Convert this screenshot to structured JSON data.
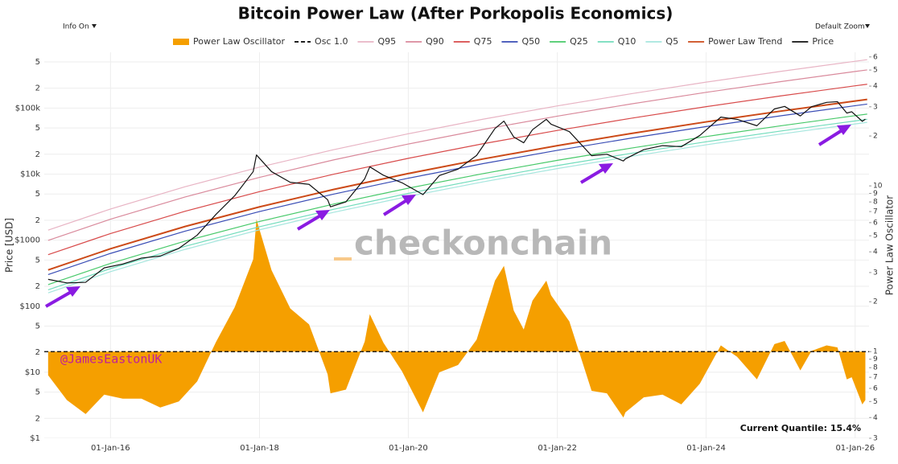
{
  "chart_data": {
    "type": "line",
    "title": "Bitcoin Power Law (After Porkopolis Economics)",
    "controls": {
      "info": "Info On",
      "zoom": "Default Zoom"
    },
    "ylabel": "Price [USD]",
    "y2label": "Power Law Oscillator",
    "log_scale": true,
    "grid": true,
    "legend": "top",
    "annotations": {
      "quantile": "Current Quantile: 15.4%",
      "watermark": "checkonchain",
      "handle": "@JamesEastonUK"
    },
    "xlim": [
      "2015-02-10",
      "2026-03-10"
    ],
    "xticks": [
      {
        "value": "2016-01-01",
        "label": "01-Jan-16"
      },
      {
        "value": "2018-01-01",
        "label": "01-Jan-18"
      },
      {
        "value": "2020-01-01",
        "label": "01-Jan-20"
      },
      {
        "value": "2022-01-01",
        "label": "01-Jan-22"
      },
      {
        "value": "2024-01-01",
        "label": "01-Jan-24"
      },
      {
        "value": "2026-01-01",
        "label": "01-Jan-26"
      }
    ],
    "ylim": [
      1,
      700000
    ],
    "yticks": [
      {
        "value": 1,
        "label": "$1"
      },
      2,
      5,
      {
        "value": 10,
        "label": "$10"
      },
      {
        "value": 20,
        "label": "2"
      },
      {
        "value": 50,
        "label": "5"
      },
      {
        "value": 100,
        "label": "$100"
      },
      {
        "value": 200,
        "label": "2"
      },
      {
        "value": 500,
        "label": "5"
      },
      {
        "value": 1000,
        "label": "$1000"
      },
      {
        "value": 2000,
        "label": "2"
      },
      {
        "value": 5000,
        "label": "5"
      },
      {
        "value": 10000,
        "label": "$10k"
      },
      {
        "value": 20000,
        "label": "2"
      },
      {
        "value": 50000,
        "label": "5"
      },
      {
        "value": 100000,
        "label": "$100k"
      },
      {
        "value": 200000,
        "label": "2"
      },
      {
        "value": 500000,
        "label": "5"
      }
    ],
    "y2lim": [
      0.3,
      64
    ],
    "y2ticks": [
      {
        "value": 0.3,
        "label": "3"
      },
      {
        "value": 0.4,
        "label": "4"
      },
      {
        "value": 0.5,
        "label": "5"
      },
      {
        "value": 0.6,
        "label": "6"
      },
      {
        "value": 0.7,
        "label": "7"
      },
      {
        "value": 0.8,
        "label": "8"
      },
      {
        "value": 0.9,
        "label": "9"
      },
      1,
      2,
      3,
      4,
      5,
      6,
      7,
      8,
      9,
      10,
      {
        "value": 20,
        "label": "2"
      },
      {
        "value": 30,
        "label": "3"
      },
      {
        "value": 40,
        "label": "4"
      },
      {
        "value": 50,
        "label": "5"
      },
      {
        "value": 60,
        "label": "6"
      }
    ],
    "x": [
      "2015-03-01",
      "2015-06-01",
      "2015-09-01",
      "2015-12-01",
      "2016-03-01",
      "2016-06-01",
      "2016-09-01",
      "2016-12-01",
      "2017-03-01",
      "2017-06-01",
      "2017-09-01",
      "2017-12-01",
      "2017-12-17",
      "2018-03-01",
      "2018-06-01",
      "2018-09-01",
      "2018-12-01",
      "2018-12-15",
      "2019-03-01",
      "2019-06-01",
      "2019-06-26",
      "2019-09-01",
      "2019-12-01",
      "2020-03-13",
      "2020-06-01",
      "2020-09-01",
      "2020-12-01",
      "2021-03-01",
      "2021-04-14",
      "2021-06-01",
      "2021-07-20",
      "2021-09-01",
      "2021-11-08",
      "2021-12-01",
      "2022-03-01",
      "2022-06-18",
      "2022-09-01",
      "2022-11-21",
      "2022-12-01",
      "2023-03-01",
      "2023-06-01",
      "2023-09-01",
      "2023-12-01",
      "2024-03-13",
      "2024-06-01",
      "2024-09-06",
      "2024-12-01",
      "2025-01-20",
      "2025-04-07",
      "2025-06-01",
      "2025-08-14",
      "2025-10-06",
      "2025-11-21",
      "2025-12-15",
      "2026-02-05",
      "2026-02-20"
    ],
    "series": [
      {
        "name": "Power Law Oscillator",
        "color": "#f59f00",
        "style": "area",
        "axis": "y2",
        "values": [
          0.72,
          0.51,
          0.42,
          0.55,
          0.52,
          0.52,
          0.46,
          0.5,
          0.66,
          1.14,
          1.85,
          3.61,
          6.28,
          3.1,
          1.82,
          1.46,
          0.73,
          0.56,
          0.59,
          1.15,
          1.68,
          1.13,
          0.76,
          0.43,
          0.75,
          0.83,
          1.18,
          2.68,
          3.29,
          1.77,
          1.36,
          2.03,
          2.68,
          2.19,
          1.52,
          0.58,
          0.56,
          0.4,
          0.43,
          0.53,
          0.55,
          0.48,
          0.64,
          1.09,
          0.93,
          0.68,
          1.11,
          1.16,
          0.77,
          1.01,
          1.09,
          1.06,
          0.68,
          0.7,
          0.48,
          0.51
        ]
      },
      {
        "name": "Osc 1.0",
        "color": "#000000",
        "style": "dash",
        "axis": "y2",
        "value": 1
      },
      {
        "name": "Q95",
        "color": "#e8b4c4",
        "x": [
          "2015-03-01",
          "2016-01-01",
          "2017-01-01",
          "2018-01-01",
          "2019-01-01",
          "2020-01-01",
          "2021-01-01",
          "2022-01-01",
          "2023-01-01",
          "2024-01-01",
          "2025-01-01",
          "2026-01-01",
          "2026-03-01"
        ],
        "values": [
          1416,
          2964,
          6444,
          12768,
          23500,
          40840,
          67800,
          107880,
          165600,
          247200,
          359600,
          511600,
          540800
        ]
      },
      {
        "name": "Q90",
        "color": "#d98a9c",
        "x": [
          "2015-03-01",
          "2016-01-01",
          "2017-01-01",
          "2018-01-01",
          "2019-01-01",
          "2020-01-01",
          "2021-01-01",
          "2022-01-01",
          "2023-01-01",
          "2024-01-01",
          "2025-01-01",
          "2026-01-01",
          "2026-03-01"
        ],
        "values": [
          991,
          2075,
          4511,
          8938,
          16450,
          28588,
          47460,
          75516,
          115920,
          173040,
          251720,
          358120,
          378560
        ]
      },
      {
        "name": "Q75",
        "color": "#d84a4a",
        "x": [
          "2015-03-01",
          "2016-01-01",
          "2017-01-01",
          "2018-01-01",
          "2019-01-01",
          "2020-01-01",
          "2021-01-01",
          "2022-01-01",
          "2023-01-01",
          "2024-01-01",
          "2025-01-01",
          "2026-01-01",
          "2026-03-01"
        ],
        "values": [
          602,
          1260,
          2739,
          5426,
          9988,
          17357,
          28815,
          45849,
          70380,
          105060,
          152830,
          217430,
          229840
        ]
      },
      {
        "name": "Q50",
        "color": "#3a4db5",
        "x": [
          "2015-03-01",
          "2016-01-01",
          "2017-01-01",
          "2018-01-01",
          "2019-01-01",
          "2020-01-01",
          "2021-01-01",
          "2022-01-01",
          "2023-01-01",
          "2024-01-01",
          "2025-01-01",
          "2026-01-01",
          "2026-03-01"
        ],
        "values": [
          301,
          630,
          1369,
          2713,
          4994,
          8679,
          14408,
          22925,
          35190,
          52530,
          76415,
          108715,
          114920
        ]
      },
      {
        "name": "Q25",
        "color": "#48c96a",
        "x": [
          "2015-03-01",
          "2016-01-01",
          "2017-01-01",
          "2018-01-01",
          "2019-01-01",
          "2020-01-01",
          "2021-01-01",
          "2022-01-01",
          "2023-01-01",
          "2024-01-01",
          "2025-01-01",
          "2026-01-01",
          "2026-03-01"
        ],
        "values": [
          212,
          445,
          967,
          1915,
          3525,
          6126,
          10170,
          16182,
          24840,
          37080,
          53940,
          76740,
          81120
        ]
      },
      {
        "name": "Q10",
        "color": "#72dcbc",
        "x": [
          "2015-03-01",
          "2016-01-01",
          "2017-01-01",
          "2018-01-01",
          "2019-01-01",
          "2020-01-01",
          "2021-01-01",
          "2022-01-01",
          "2023-01-01",
          "2024-01-01",
          "2025-01-01",
          "2026-01-01",
          "2026-03-01"
        ],
        "values": [
          177,
          371,
          806,
          1596,
          2938,
          5105,
          8475,
          13485,
          20700,
          30900,
          44950,
          63950,
          67600
        ]
      },
      {
        "name": "Q5",
        "color": "#a6e6de",
        "x": [
          "2015-03-01",
          "2016-01-01",
          "2017-01-01",
          "2018-01-01",
          "2019-01-01",
          "2020-01-01",
          "2021-01-01",
          "2022-01-01",
          "2023-01-01",
          "2024-01-01",
          "2025-01-01",
          "2026-01-01",
          "2026-03-01"
        ],
        "values": [
          159,
          333,
          725,
          1436,
          2644,
          4595,
          7628,
          12137,
          18630,
          27810,
          40455,
          57555,
          60840
        ]
      },
      {
        "name": "Power Law Trend",
        "color": "#cc4a18",
        "width": 2,
        "x": [
          "2015-03-01",
          "2016-01-01",
          "2017-01-01",
          "2018-01-01",
          "2019-01-01",
          "2020-01-01",
          "2021-01-01",
          "2022-01-01",
          "2023-01-01",
          "2024-01-01",
          "2025-01-01",
          "2026-01-01",
          "2026-03-01"
        ],
        "values": [
          354,
          741,
          1611,
          3192,
          5875,
          10210,
          16950,
          26970,
          41400,
          61800,
          89900,
          127900,
          135200
        ]
      },
      {
        "name": "Price",
        "color": "#111111",
        "values": [
          255,
          225,
          230,
          380,
          435,
          535,
          575,
          750,
          1190,
          2450,
          4700,
          10900,
          19500,
          10900,
          7500,
          7000,
          4100,
          3200,
          3800,
          8500,
          12900,
          9600,
          7400,
          4900,
          9500,
          11900,
          19200,
          49000,
          63500,
          36500,
          29800,
          47000,
          67500,
          57000,
          44000,
          19000,
          20000,
          15800,
          17000,
          23500,
          27000,
          26000,
          38500,
          73000,
          67500,
          54000,
          97000,
          106000,
          76000,
          105000,
          122000,
          125000,
          84000,
          88000,
          63000,
          68000
        ]
      }
    ]
  }
}
